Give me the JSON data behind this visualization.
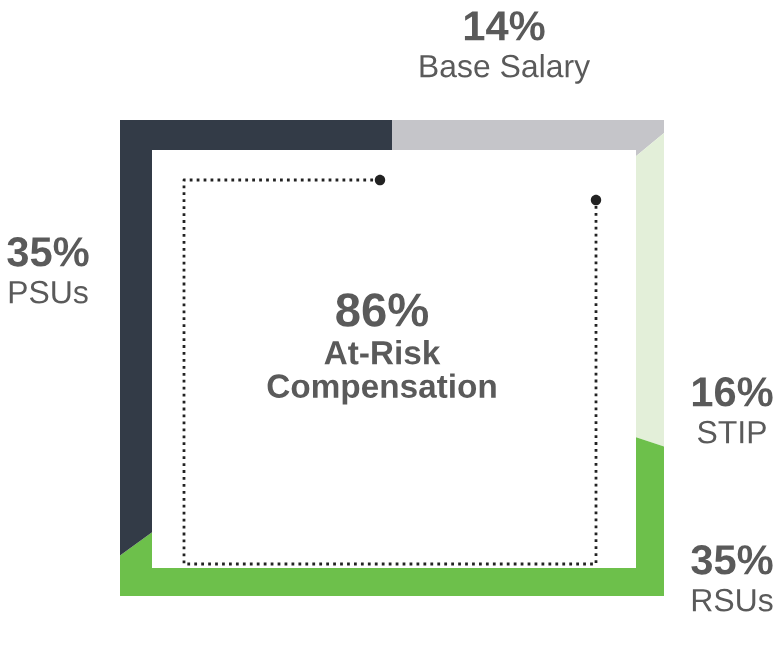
{
  "chart_data": {
    "type": "donut",
    "categories": [
      "Base Salary",
      "STIP",
      "RSUs",
      "PSUs"
    ],
    "values": [
      14,
      16,
      35,
      35
    ],
    "colors": [
      "#c5c5c9",
      "#e3efd9",
      "#6dc04b",
      "#333b47"
    ],
    "value_labels": [
      "14%",
      "16%",
      "35%",
      "35%"
    ],
    "annotations": [
      "86%",
      "At-Risk\nCompensation"
    ]
  }
}
